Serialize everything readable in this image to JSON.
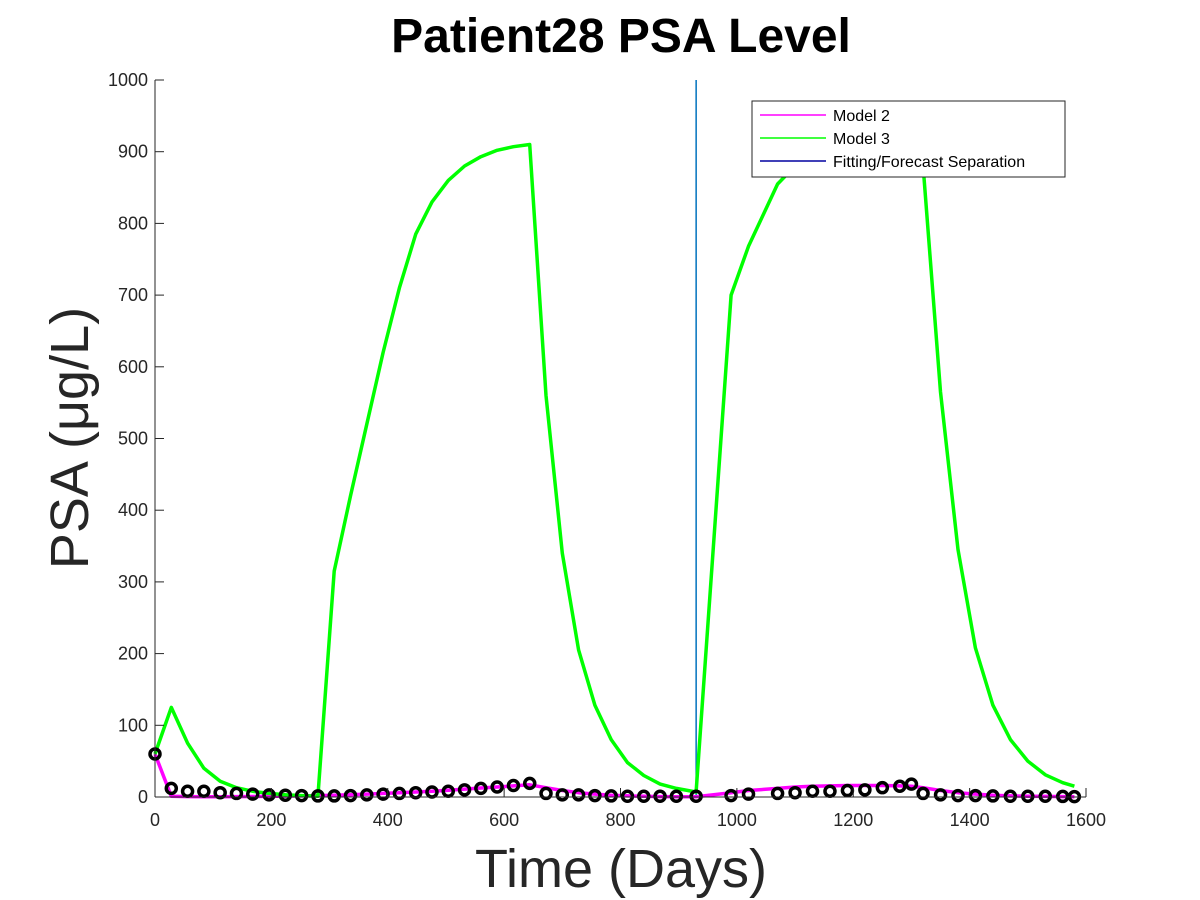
{
  "chart_data": {
    "type": "line",
    "title": "Patient28 PSA Level",
    "xlabel": "Time (Days)",
    "ylabel": "PSA (μg/L)",
    "xlim": [
      0,
      1600
    ],
    "ylim": [
      0,
      1000
    ],
    "xticks": [
      0,
      200,
      400,
      600,
      800,
      1000,
      1200,
      1400,
      1600
    ],
    "yticks": [
      0,
      100,
      200,
      300,
      400,
      500,
      600,
      700,
      800,
      900,
      1000
    ],
    "grid": false,
    "legend_position": "top-right",
    "separation_x": 930,
    "series": [
      {
        "name": "Model 2",
        "color": "#ff00ff",
        "x": [
          0,
          28,
          56,
          84,
          112,
          140,
          168,
          196,
          224,
          252,
          280,
          308,
          336,
          364,
          392,
          420,
          448,
          476,
          504,
          532,
          560,
          588,
          616,
          644,
          672,
          700,
          728,
          756,
          784,
          812,
          840,
          868,
          896,
          930,
          990,
          1020,
          1070,
          1100,
          1130,
          1160,
          1190,
          1220,
          1250,
          1280,
          1300,
          1320,
          1350,
          1380,
          1410,
          1440,
          1470,
          1500,
          1530,
          1560,
          1580
        ],
        "y": [
          60,
          1,
          0.5,
          0.3,
          0.3,
          0.5,
          0.7,
          0.9,
          1.2,
          1.6,
          2,
          2.5,
          3.2,
          4,
          5,
          6,
          7,
          8,
          9.5,
          11,
          12.5,
          14,
          15.5,
          17,
          13,
          9,
          6,
          4,
          2.5,
          1.5,
          1,
          0.6,
          0.4,
          0.3,
          6,
          9,
          12,
          14,
          15,
          15.5,
          16,
          16,
          16,
          15.5,
          15,
          13,
          9,
          6,
          4,
          2.5,
          1.5,
          1,
          0.8,
          0.5,
          0.3
        ]
      },
      {
        "name": "Model 3",
        "color": "#00ff00",
        "x": [
          0,
          28,
          56,
          84,
          112,
          140,
          168,
          196,
          224,
          252,
          280,
          308,
          336,
          364,
          392,
          420,
          448,
          476,
          504,
          532,
          560,
          588,
          616,
          644,
          672,
          700,
          728,
          756,
          784,
          812,
          840,
          868,
          896,
          930,
          990,
          1020,
          1070,
          1100,
          1130,
          1160,
          1190,
          1220,
          1250,
          1280,
          1300,
          1320,
          1350,
          1380,
          1410,
          1440,
          1470,
          1500,
          1530,
          1560,
          1580
        ],
        "y": [
          60,
          125,
          75,
          40,
          22,
          13,
          8,
          5,
          3,
          2,
          1,
          315,
          420,
          520,
          620,
          710,
          785,
          830,
          860,
          880,
          893,
          902,
          907,
          910,
          560,
          340,
          205,
          128,
          80,
          48,
          30,
          18,
          12,
          7,
          700,
          768,
          855,
          880,
          895,
          905,
          910,
          912,
          913,
          914,
          915,
          880,
          565,
          345,
          208,
          128,
          80,
          50,
          31,
          20,
          15
        ]
      },
      {
        "name": "Fitting/Forecast Separation",
        "color": "#0000a0"
      }
    ],
    "observations": {
      "marker": "circle",
      "x": [
        0,
        28,
        56,
        84,
        112,
        140,
        168,
        196,
        224,
        252,
        280,
        308,
        336,
        364,
        392,
        420,
        448,
        476,
        504,
        532,
        560,
        588,
        616,
        644,
        672,
        700,
        728,
        756,
        784,
        812,
        840,
        868,
        896,
        930,
        990,
        1020,
        1070,
        1100,
        1130,
        1160,
        1190,
        1220,
        1250,
        1280,
        1300,
        1320,
        1350,
        1380,
        1410,
        1440,
        1470,
        1500,
        1530,
        1560,
        1580
      ],
      "y": [
        60,
        12,
        8,
        8,
        6,
        5,
        4,
        3,
        2.5,
        2,
        1.5,
        1.5,
        2,
        3,
        4,
        5,
        6,
        7,
        8,
        10,
        12,
        14,
        16,
        19,
        5,
        3,
        3,
        2,
        1.5,
        1,
        1,
        1,
        1,
        1,
        2,
        4,
        5,
        6,
        8,
        8,
        9,
        10,
        13,
        15,
        18,
        5,
        3,
        2,
        2,
        1.5,
        1,
        1,
        1,
        0.8,
        0.5
      ]
    }
  }
}
